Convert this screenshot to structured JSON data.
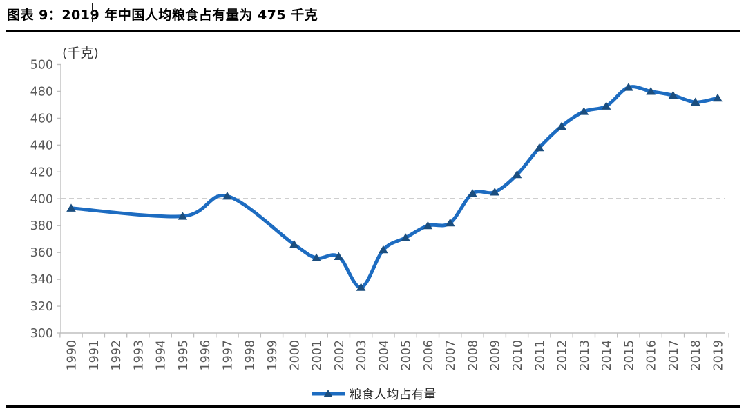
{
  "page": {
    "title": "图表 9：2019 年中国人均粮食占有量为 475 千克"
  },
  "chart_data": {
    "type": "line",
    "title": "图表 9：2019 年中国人均粮食占有量为 475 千克",
    "unit_label": "(千克)",
    "xlabel": "",
    "ylabel": "千克",
    "ylim": [
      300,
      500
    ],
    "y_tick_step": 20,
    "y_ticks": [
      300,
      320,
      340,
      360,
      380,
      400,
      420,
      440,
      460,
      480,
      500
    ],
    "x_tick_labels": [
      "1990",
      "1991",
      "1992",
      "1993",
      "1994",
      "1995",
      "1996",
      "1997",
      "1998",
      "1999",
      "2000",
      "2001",
      "2002",
      "2003",
      "2004",
      "2005",
      "2006",
      "2007",
      "2008",
      "2009",
      "2010",
      "2011",
      "2012",
      "2013",
      "2014",
      "2015",
      "2016",
      "2017",
      "2018",
      "2019"
    ],
    "grid": false,
    "line_style": "smoothed",
    "marker_shape": "triangle-up",
    "legend_position": "bottom",
    "reference_line": {
      "value": 400,
      "style": "dashed"
    },
    "series": [
      {
        "name": "粮食人均占有量",
        "points": [
          {
            "year": 1990,
            "value": 393
          },
          {
            "year": 1995,
            "value": 387
          },
          {
            "year": 1997,
            "value": 402
          },
          {
            "year": 2000,
            "value": 366
          },
          {
            "year": 2001,
            "value": 356
          },
          {
            "year": 2002,
            "value": 357
          },
          {
            "year": 2003,
            "value": 334
          },
          {
            "year": 2004,
            "value": 362
          },
          {
            "year": 2005,
            "value": 371
          },
          {
            "year": 2006,
            "value": 380
          },
          {
            "year": 2007,
            "value": 382
          },
          {
            "year": 2008,
            "value": 404
          },
          {
            "year": 2009,
            "value": 405
          },
          {
            "year": 2010,
            "value": 418
          },
          {
            "year": 2011,
            "value": 438
          },
          {
            "year": 2012,
            "value": 454
          },
          {
            "year": 2013,
            "value": 465
          },
          {
            "year": 2014,
            "value": 469
          },
          {
            "year": 2015,
            "value": 483
          },
          {
            "year": 2016,
            "value": 480
          },
          {
            "year": 2017,
            "value": 477
          },
          {
            "year": 2018,
            "value": 472
          },
          {
            "year": 2019,
            "value": 475
          }
        ]
      }
    ],
    "colors": {
      "line": "#1d6cc1",
      "marker": "#1b4e7f",
      "reference": "#9c9c9c",
      "axis": "#bfbfbf",
      "tick_text": "#595959",
      "unit_text": "#3a3a3a"
    },
    "legend_label": "粮食人均占有量"
  }
}
